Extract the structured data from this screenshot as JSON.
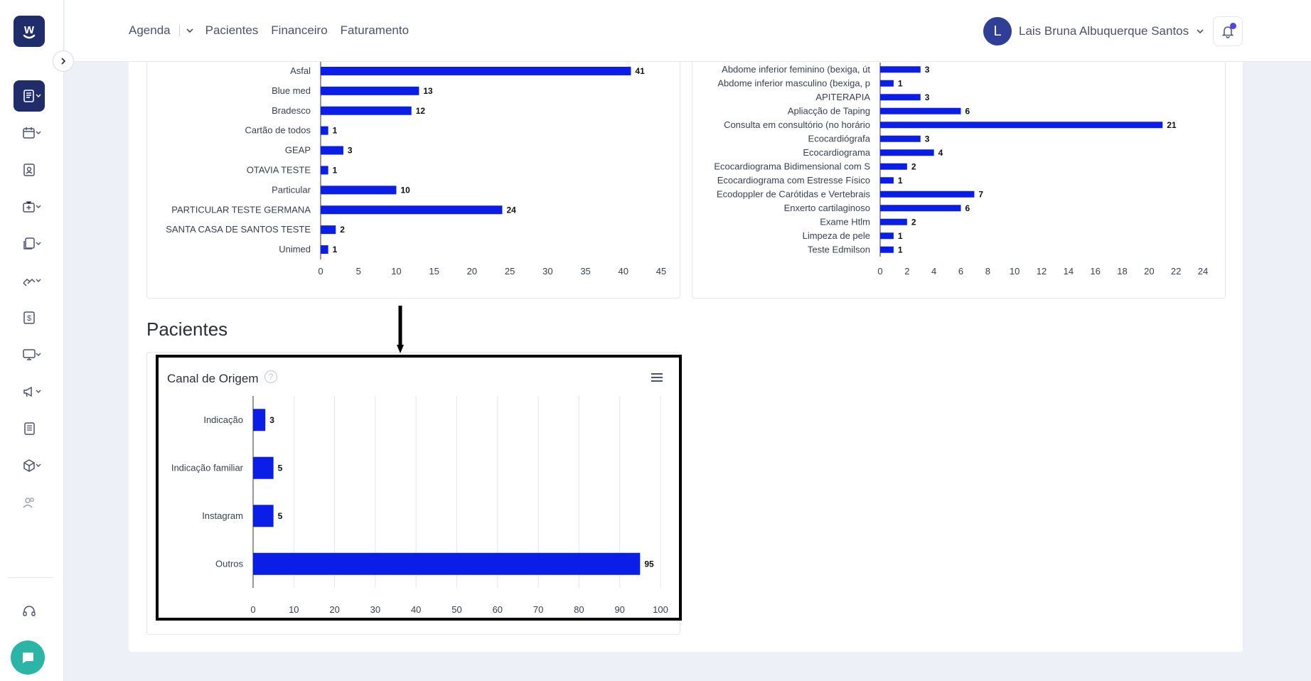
{
  "nav": {
    "agenda": "Agenda",
    "pacientes": "Pacientes",
    "financeiro": "Financeiro",
    "faturamento": "Faturamento"
  },
  "user": {
    "initial": "L",
    "name": "Lais Bruna Albuquerque Santos"
  },
  "sidebar": {
    "logo_letter": "w",
    "icons": [
      "book-icon",
      "calendar-icon",
      "id-card-icon",
      "medical-kit-icon",
      "documents-icon",
      "handshake-icon",
      "dollar-icon",
      "monitor-icon",
      "megaphone-icon",
      "news-icon",
      "box-icon",
      "users-icon",
      "headset-icon",
      "chat-icon"
    ]
  },
  "colors": {
    "bar": "#0a1ee8",
    "brand": "#1f2d6a",
    "chat": "#2bb5a6"
  },
  "section": {
    "title": "Pacientes"
  },
  "pac_card": {
    "title": "Canal de Origem",
    "help": "?"
  },
  "chart_data": [
    {
      "type": "bar",
      "orientation": "horizontal",
      "categories": [
        "Asfal",
        "Blue med",
        "Bradesco",
        "Cartão de todos",
        "GEAP",
        "OTAVIA TESTE",
        "Particular",
        "PARTICULAR TESTE GERMANA",
        "SANTA CASA DE SANTOS TESTE",
        "Unimed"
      ],
      "values": [
        41,
        13,
        12,
        1,
        3,
        1,
        10,
        24,
        2,
        1
      ],
      "xlim": [
        0,
        45
      ],
      "xticks": [
        "0",
        "5",
        "10",
        "15",
        "20",
        "25",
        "30",
        "35",
        "40",
        "45"
      ]
    },
    {
      "type": "bar",
      "orientation": "horizontal",
      "categories": [
        "Abdome inferior feminino (bexiga, út",
        "Abdome inferior masculino (bexiga, p",
        "APITERAPIA",
        "Apliacção de Taping",
        "Consulta em consultório (no horário",
        "Ecocardiógrafa",
        "Ecocardiograma",
        "Ecocardiograma Bidimensional com S",
        "Ecocardiograma com Estresse Físico",
        "Ecodoppler de Carótidas e Vertebrais",
        "Enxerto cartilaginoso",
        "Exame Htlm",
        "Limpeza de pele",
        "Teste Edmilson"
      ],
      "values": [
        3,
        1,
        3,
        6,
        21,
        3,
        4,
        2,
        1,
        7,
        6,
        2,
        1,
        1
      ],
      "xlim": [
        0,
        24
      ],
      "xticks": [
        "0",
        "2",
        "4",
        "6",
        "8",
        "10",
        "12",
        "14",
        "16",
        "18",
        "20",
        "22",
        "24"
      ]
    },
    {
      "type": "bar",
      "orientation": "horizontal",
      "title": "Canal de Origem",
      "categories": [
        "Indicação",
        "Indicação familiar",
        "Instagram",
        "Outros"
      ],
      "values": [
        3,
        5,
        5,
        95
      ],
      "xlim": [
        0,
        100
      ],
      "xticks": [
        "0",
        "10",
        "20",
        "30",
        "40",
        "50",
        "60",
        "70",
        "80",
        "90",
        "100"
      ],
      "grid": true
    }
  ]
}
